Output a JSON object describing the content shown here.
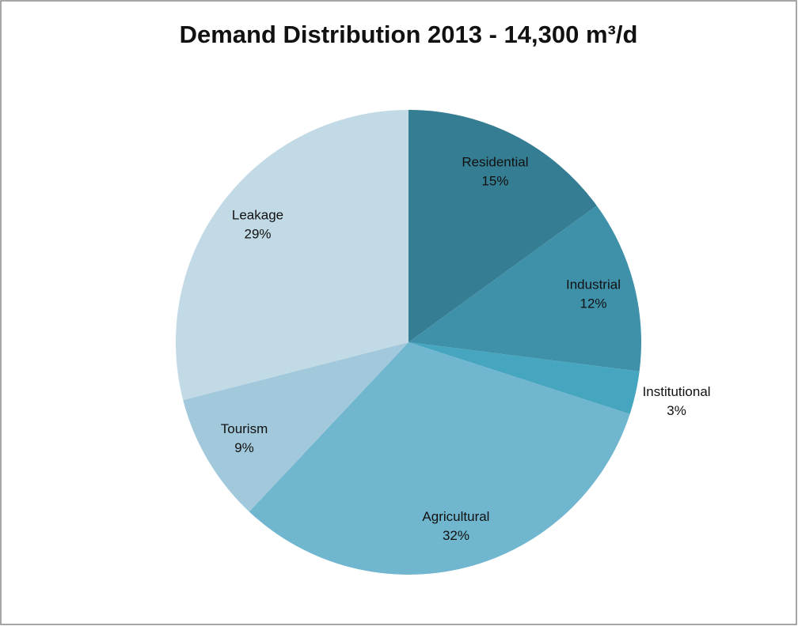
{
  "chart_data": {
    "type": "pie",
    "title": "Demand Distribution 2013 - 14,300 m³/d",
    "categories": [
      "Residential",
      "Industrial",
      "Institutional",
      "Agricultural",
      "Tourism",
      "Leakage"
    ],
    "values": [
      15,
      12,
      3,
      32,
      9,
      29
    ],
    "value_labels": [
      "15%",
      "12%",
      "3%",
      "32%",
      "9%",
      "29%"
    ],
    "colors": [
      "#357d93",
      "#3f91aa",
      "#46a5bf",
      "#70b6cf",
      "#a2c9db",
      "#c2dae5"
    ]
  }
}
